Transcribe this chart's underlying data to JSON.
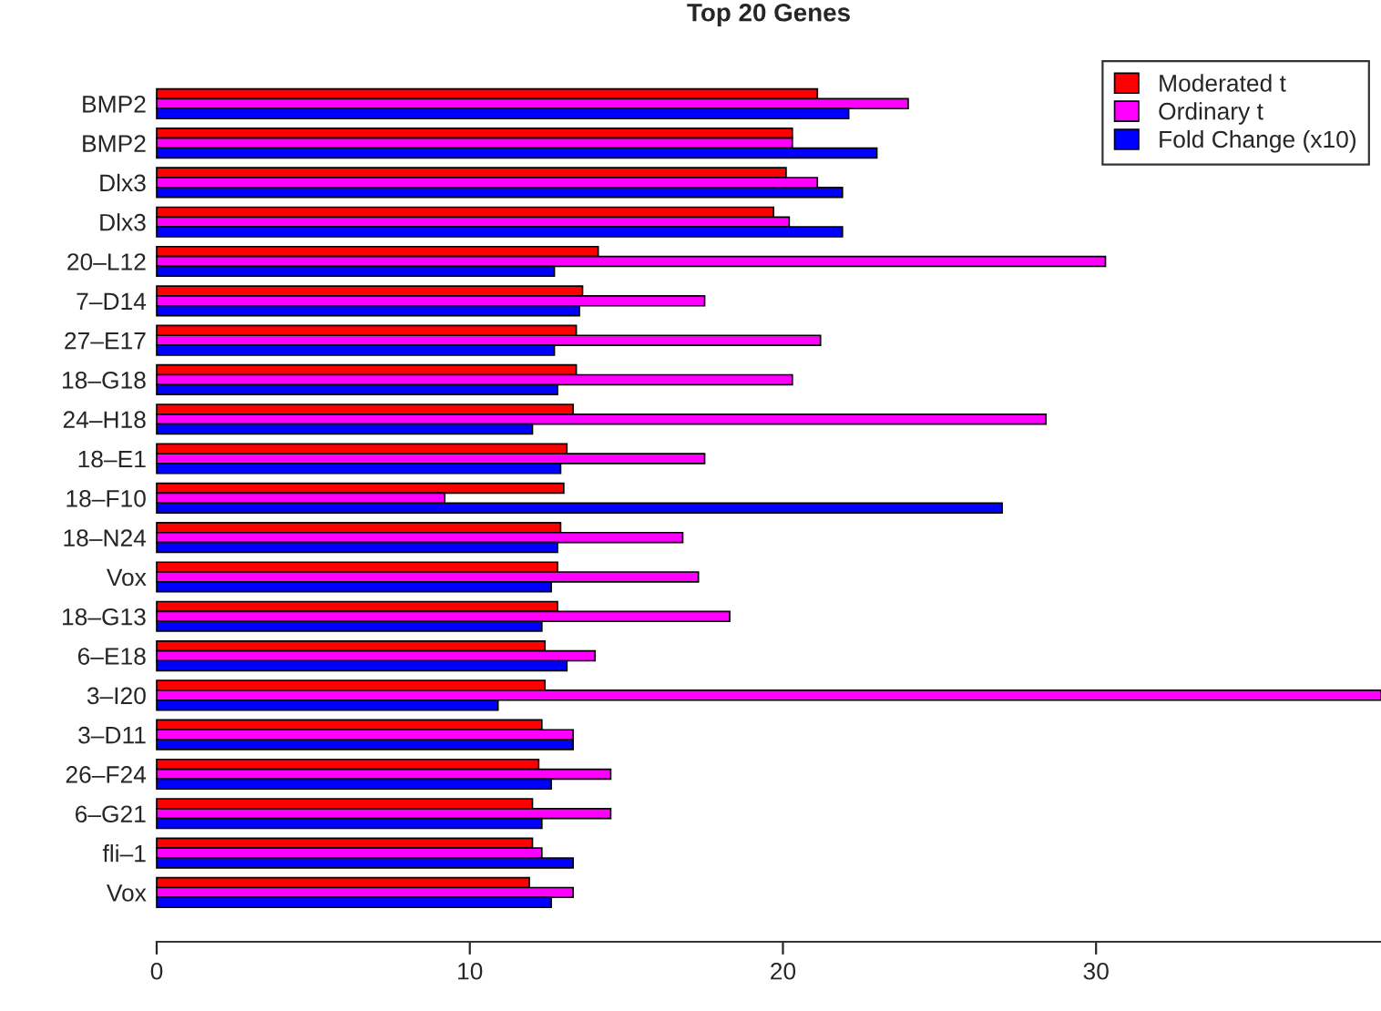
{
  "chart_data": {
    "type": "bar",
    "orientation": "horizontal",
    "title": "Top 20 Genes",
    "categories": [
      "BMP2",
      "BMP2",
      "Dlx3",
      "Dlx3",
      "20–L12",
      "7–D14",
      "27–E17",
      "18–G18",
      "24–H18",
      "18–E1",
      "18–F10",
      "18–N24",
      "Vox",
      "18–G13",
      "6–E18",
      "3–I20",
      "3–D11",
      "26–F24",
      "6–G21",
      "fli–1",
      "Vox"
    ],
    "series": [
      {
        "name": "Moderated t",
        "color": "#ff0000",
        "values": [
          21.1,
          20.3,
          20.1,
          19.7,
          14.1,
          13.6,
          13.4,
          13.4,
          13.3,
          13.1,
          13.0,
          12.9,
          12.8,
          12.8,
          12.4,
          12.4,
          12.3,
          12.2,
          12.0,
          12.0,
          11.9
        ]
      },
      {
        "name": "Ordinary t",
        "color": "#ff00ff",
        "values": [
          24.0,
          20.3,
          21.1,
          20.2,
          30.3,
          17.5,
          21.2,
          20.3,
          28.4,
          17.5,
          9.2,
          16.8,
          17.3,
          18.3,
          14.0,
          39.1,
          13.3,
          14.5,
          14.5,
          12.3,
          13.3
        ]
      },
      {
        "name": "Fold Change (x10)",
        "color": "#0000ff",
        "values": [
          22.1,
          23.0,
          21.9,
          21.9,
          12.7,
          13.5,
          12.7,
          12.8,
          12.0,
          12.9,
          27.0,
          12.8,
          12.6,
          12.3,
          13.1,
          10.9,
          13.3,
          12.6,
          12.3,
          13.3,
          12.6
        ]
      }
    ],
    "xlim": [
      0,
      39.1
    ],
    "xticks": [
      0,
      10,
      20,
      30
    ],
    "grid": false,
    "legend": "top right"
  }
}
